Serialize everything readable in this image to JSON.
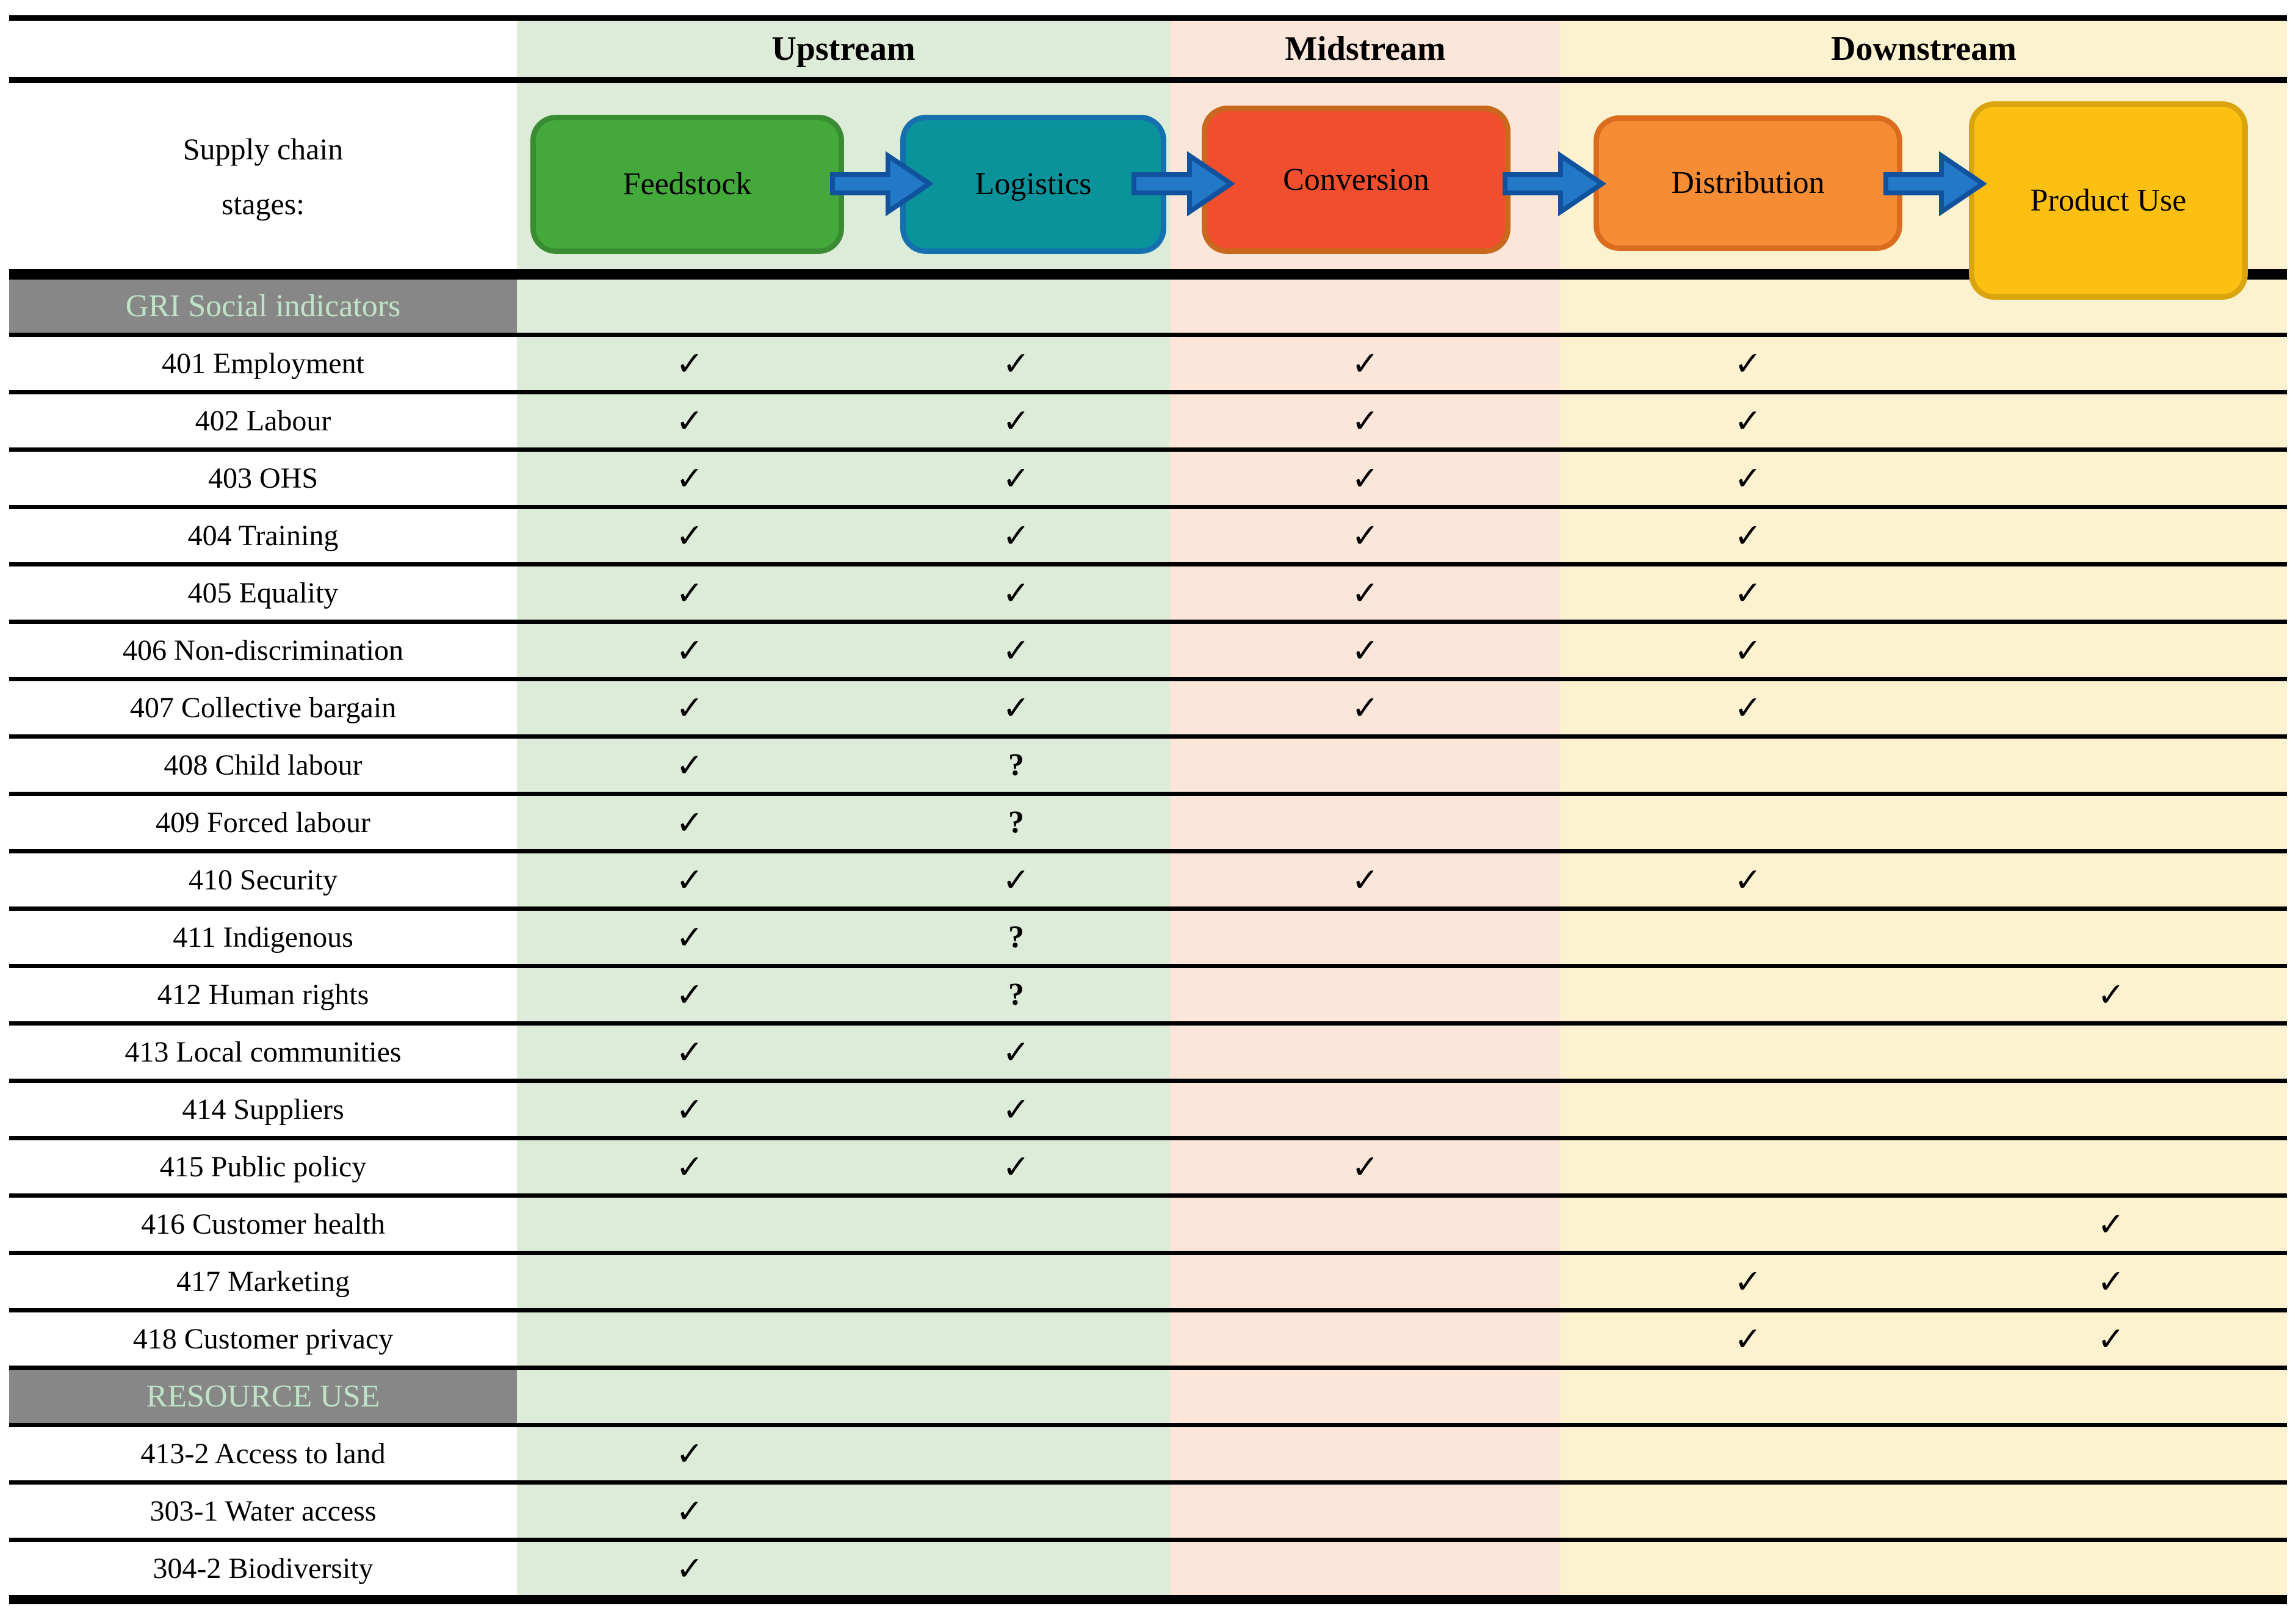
{
  "figure": {
    "streams": [
      {
        "label": "Upstream"
      },
      {
        "label": "Midstream"
      },
      {
        "label": "Downstream"
      }
    ],
    "stages_caption": {
      "line1": "Supply chain",
      "line2": "stages:"
    },
    "stages": [
      {
        "label": "Feedstock",
        "fill": "#43a93b",
        "border": "#3a8c33"
      },
      {
        "label": "Logistics",
        "fill": "#0a939b",
        "border": "#1470ae"
      },
      {
        "label": "Conversion",
        "fill": "#f04e2d",
        "border": "#c8691d"
      },
      {
        "label": "Distribution",
        "fill": "#f68c34",
        "border": "#db6c1e"
      },
      {
        "label": "Product Use",
        "fill": "#fdc012",
        "border": "#d9a40d"
      }
    ],
    "marks": {
      "check": "✓",
      "question": "?",
      "none": ""
    },
    "sections": [
      {
        "header": "GRI Social indicators",
        "rows": [
          {
            "label": "401 Employment",
            "cells": [
              "check",
              "check",
              "check",
              "check",
              "none"
            ]
          },
          {
            "label": "402 Labour",
            "cells": [
              "check",
              "check",
              "check",
              "check",
              "none"
            ]
          },
          {
            "label": "403 OHS",
            "cells": [
              "check",
              "check",
              "check",
              "check",
              "none"
            ]
          },
          {
            "label": "404 Training",
            "cells": [
              "check",
              "check",
              "check",
              "check",
              "none"
            ]
          },
          {
            "label": "405 Equality",
            "cells": [
              "check",
              "check",
              "check",
              "check",
              "none"
            ]
          },
          {
            "label": "406 Non-discrimination",
            "cells": [
              "check",
              "check",
              "check",
              "check",
              "none"
            ]
          },
          {
            "label": "407 Collective bargain",
            "cells": [
              "check",
              "check",
              "check",
              "check",
              "none"
            ]
          },
          {
            "label": "408 Child labour",
            "cells": [
              "check",
              "question",
              "none",
              "none",
              "none"
            ]
          },
          {
            "label": "409 Forced labour",
            "cells": [
              "check",
              "question",
              "none",
              "none",
              "none"
            ]
          },
          {
            "label": "410 Security",
            "cells": [
              "check",
              "check",
              "check",
              "check",
              "none"
            ]
          },
          {
            "label": "411 Indigenous",
            "cells": [
              "check",
              "question",
              "none",
              "none",
              "none"
            ]
          },
          {
            "label": "412 Human rights",
            "cells": [
              "check",
              "question",
              "none",
              "none",
              "check"
            ]
          },
          {
            "label": "413 Local communities",
            "cells": [
              "check",
              "check",
              "none",
              "none",
              "none"
            ]
          },
          {
            "label": "414 Suppliers",
            "cells": [
              "check",
              "check",
              "none",
              "none",
              "none"
            ]
          },
          {
            "label": "415 Public policy",
            "cells": [
              "check",
              "check",
              "check",
              "none",
              "none"
            ]
          },
          {
            "label": "416 Customer health",
            "cells": [
              "none",
              "none",
              "none",
              "none",
              "check"
            ]
          },
          {
            "label": "417 Marketing",
            "cells": [
              "none",
              "none",
              "none",
              "check",
              "check"
            ]
          },
          {
            "label": "418 Customer privacy",
            "cells": [
              "none",
              "none",
              "none",
              "check",
              "check"
            ]
          }
        ]
      },
      {
        "header": "RESOURCE USE",
        "rows": [
          {
            "label": "413-2 Access to land",
            "cells": [
              "check",
              "none",
              "none",
              "none",
              "none"
            ]
          },
          {
            "label": "303-1 Water access",
            "cells": [
              "check",
              "none",
              "none",
              "none",
              "none"
            ]
          },
          {
            "label": "304-2 Biodiversity",
            "cells": [
              "check",
              "none",
              "none",
              "none",
              "none"
            ]
          }
        ]
      }
    ]
  },
  "colors": {
    "upstream_band": "#ddecd8",
    "midstream_band": "#fbe6d9",
    "downstream_band": "#fdf2cf",
    "section_header_bg": "#878787",
    "section_header_text": "#bfe3c6",
    "grid_line": "#000000",
    "arrow_fill": "#2379c8",
    "arrow_stroke": "#10529e"
  }
}
